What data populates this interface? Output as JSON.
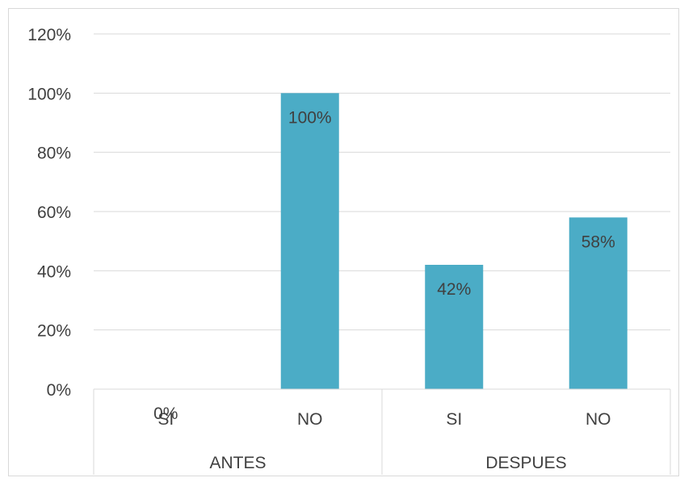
{
  "chart_data": {
    "type": "bar",
    "title": "",
    "xlabel": "",
    "ylabel": "",
    "groups": [
      {
        "label": "ANTES",
        "categories": [
          "SI",
          "NO"
        ]
      },
      {
        "label": "DESPUES",
        "categories": [
          "SI",
          "NO"
        ]
      }
    ],
    "categories": [
      "SI",
      "NO",
      "SI",
      "NO"
    ],
    "values": [
      0,
      100,
      42,
      58
    ],
    "data_labels": [
      "0%",
      "100%",
      "42%",
      "58%"
    ],
    "y_ticks": [
      0,
      20,
      40,
      60,
      80,
      100,
      120
    ],
    "y_tick_labels": [
      "0%",
      "20%",
      "40%",
      "60%",
      "80%",
      "100%",
      "120%"
    ],
    "ylim": [
      0,
      120
    ],
    "grid": true,
    "legend": "none",
    "bar_color": "#4BACC6",
    "grid_color": "#D9D9D9",
    "text_color": "#404040"
  }
}
